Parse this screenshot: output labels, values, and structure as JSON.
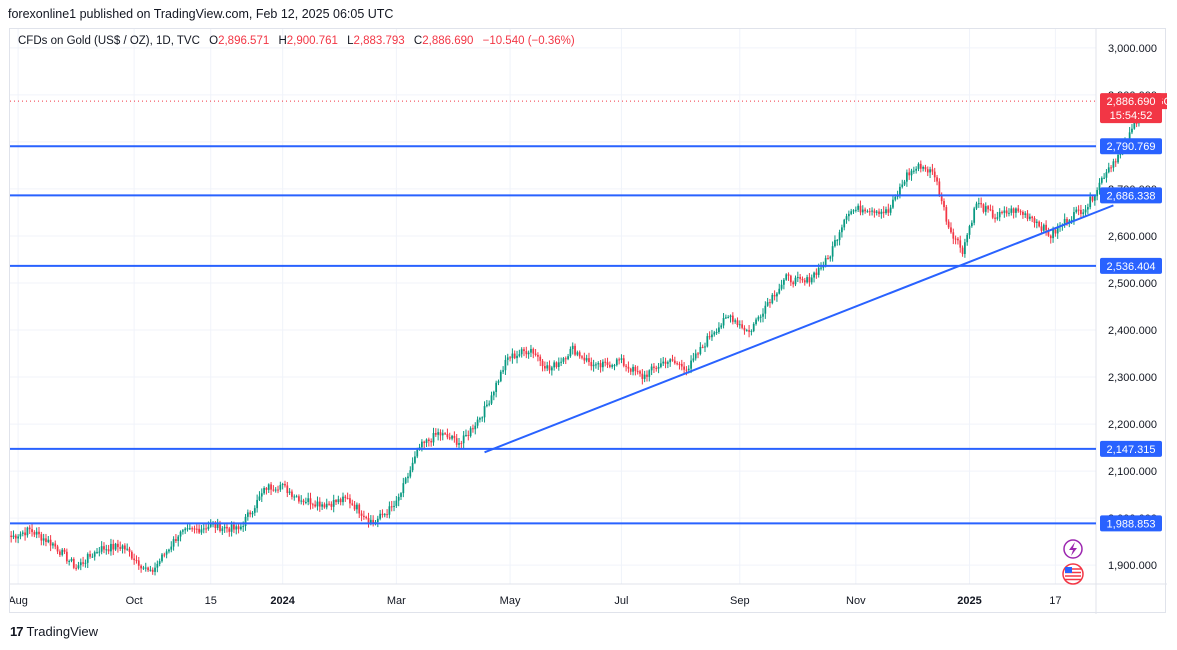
{
  "header": {
    "publisher": "forexonline1 published on TradingView.com, Feb 12, 2025 06:05 UTC"
  },
  "legend": {
    "symbol": "CFDs on Gold (US$ / OZ), 1D, TVC",
    "open_label": "O",
    "open": "2,896.571",
    "high_label": "H",
    "high": "2,900.761",
    "low_label": "L",
    "low": "2,883.793",
    "close_label": "C",
    "close": "2,886.690",
    "change": "−10.540 (−0.36%)"
  },
  "footer": {
    "brand": "TradingView",
    "logo": "17"
  },
  "colors": {
    "up": "#089981",
    "down": "#f23645",
    "line": "#2962ff",
    "grid": "#f0f3fa"
  },
  "chart_data": {
    "type": "candlestick",
    "ylim": [
      1860,
      3040
    ],
    "yticks": [
      "3,000.000",
      "2,900.000",
      "2,800.000",
      "2,700.000",
      "2,600.000",
      "2,500.000",
      "2,400.000",
      "2,300.000",
      "2,200.000",
      "2,100.000",
      "2,000.000",
      "1,900.000"
    ],
    "ytick_values": [
      3000,
      2900,
      2800,
      2700,
      2600,
      2500,
      2400,
      2300,
      2200,
      2100,
      2000,
      1900
    ],
    "xticks": [
      "Aug",
      "Oct",
      "15",
      "2024",
      "Mar",
      "May",
      "Jul",
      "Sep",
      "Nov",
      "2025",
      "17"
    ],
    "xtick_positions": [
      3,
      53,
      86,
      117,
      166,
      215,
      263,
      314,
      364,
      413,
      450
    ],
    "n_bars": 468,
    "horizontal_levels": [
      {
        "price": 2790.769,
        "label": "2,790.769"
      },
      {
        "price": 2686.338,
        "label": "2,686.338"
      },
      {
        "price": 2536.404,
        "label": "2,536.404"
      },
      {
        "price": 2147.315,
        "label": "2,147.315"
      },
      {
        "price": 1988.853,
        "label": "1,988.853"
      }
    ],
    "trendline": {
      "start": [
        204,
        2140
      ],
      "end": [
        475,
        2665
      ]
    },
    "last_price": {
      "price": 2886.69,
      "symbol": "GOLD",
      "label": "2,886.690",
      "countdown": "15:54:52"
    },
    "price_path": [
      [
        0,
        1960
      ],
      [
        8,
        1975
      ],
      [
        18,
        1945
      ],
      [
        28,
        1895
      ],
      [
        38,
        1935
      ],
      [
        48,
        1940
      ],
      [
        60,
        1882
      ],
      [
        72,
        1965
      ],
      [
        86,
        1985
      ],
      [
        98,
        1975
      ],
      [
        110,
        2065
      ],
      [
        116,
        2070
      ],
      [
        125,
        2040
      ],
      [
        135,
        2030
      ],
      [
        145,
        2040
      ],
      [
        156,
        1990
      ],
      [
        166,
        2030
      ],
      [
        176,
        2150
      ],
      [
        184,
        2180
      ],
      [
        194,
        2160
      ],
      [
        204,
        2230
      ],
      [
        214,
        2340
      ],
      [
        224,
        2360
      ],
      [
        232,
        2315
      ],
      [
        242,
        2360
      ],
      [
        252,
        2320
      ],
      [
        262,
        2335
      ],
      [
        272,
        2300
      ],
      [
        282,
        2335
      ],
      [
        292,
        2320
      ],
      [
        302,
        2395
      ],
      [
        310,
        2430
      ],
      [
        318,
        2395
      ],
      [
        326,
        2460
      ],
      [
        334,
        2510
      ],
      [
        342,
        2500
      ],
      [
        352,
        2550
      ],
      [
        360,
        2650
      ],
      [
        368,
        2660
      ],
      [
        378,
        2650
      ],
      [
        386,
        2730
      ],
      [
        392,
        2750
      ],
      [
        398,
        2730
      ],
      [
        404,
        2620
      ],
      [
        410,
        2570
      ],
      [
        416,
        2670
      ],
      [
        424,
        2640
      ],
      [
        432,
        2655
      ],
      [
        440,
        2640
      ],
      [
        448,
        2600
      ],
      [
        456,
        2640
      ],
      [
        464,
        2665
      ],
      [
        472,
        2740
      ],
      [
        480,
        2790
      ],
      [
        486,
        2860
      ],
      [
        490,
        2887
      ]
    ]
  }
}
